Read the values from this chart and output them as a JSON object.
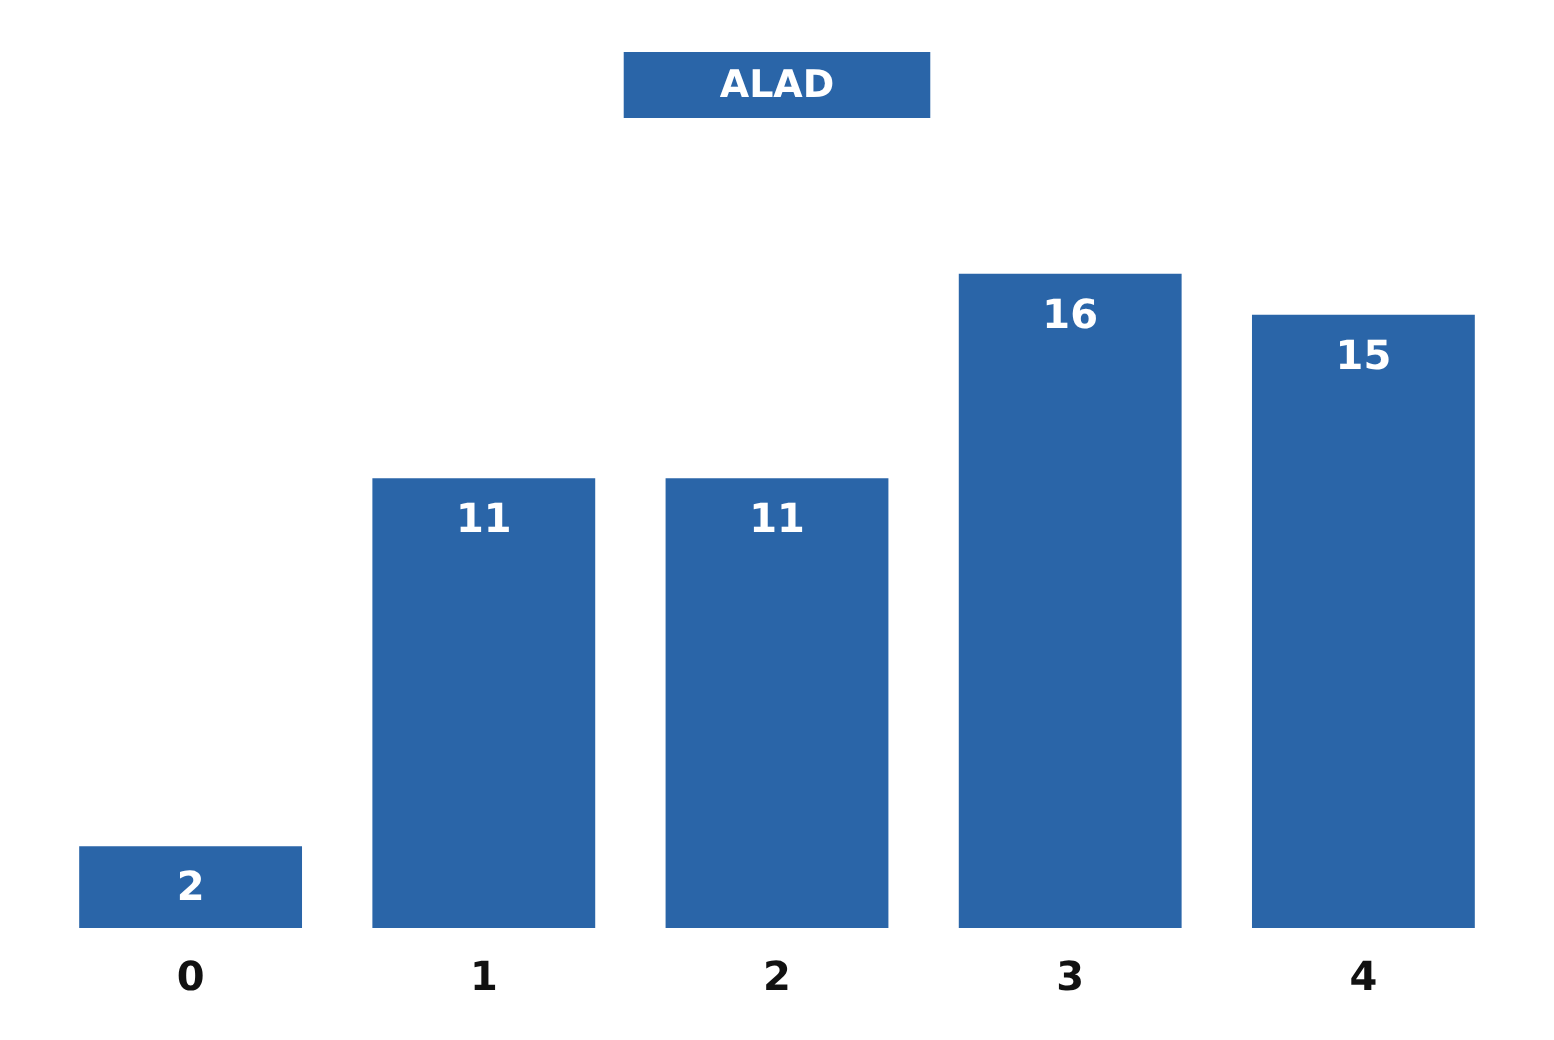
{
  "chart_data": {
    "type": "bar",
    "title": "ALAD",
    "categories": [
      "0",
      "1",
      "2",
      "3",
      "4"
    ],
    "values": [
      2,
      11,
      11,
      16,
      15
    ],
    "color": "#2a65a8",
    "data_labels": true
  }
}
